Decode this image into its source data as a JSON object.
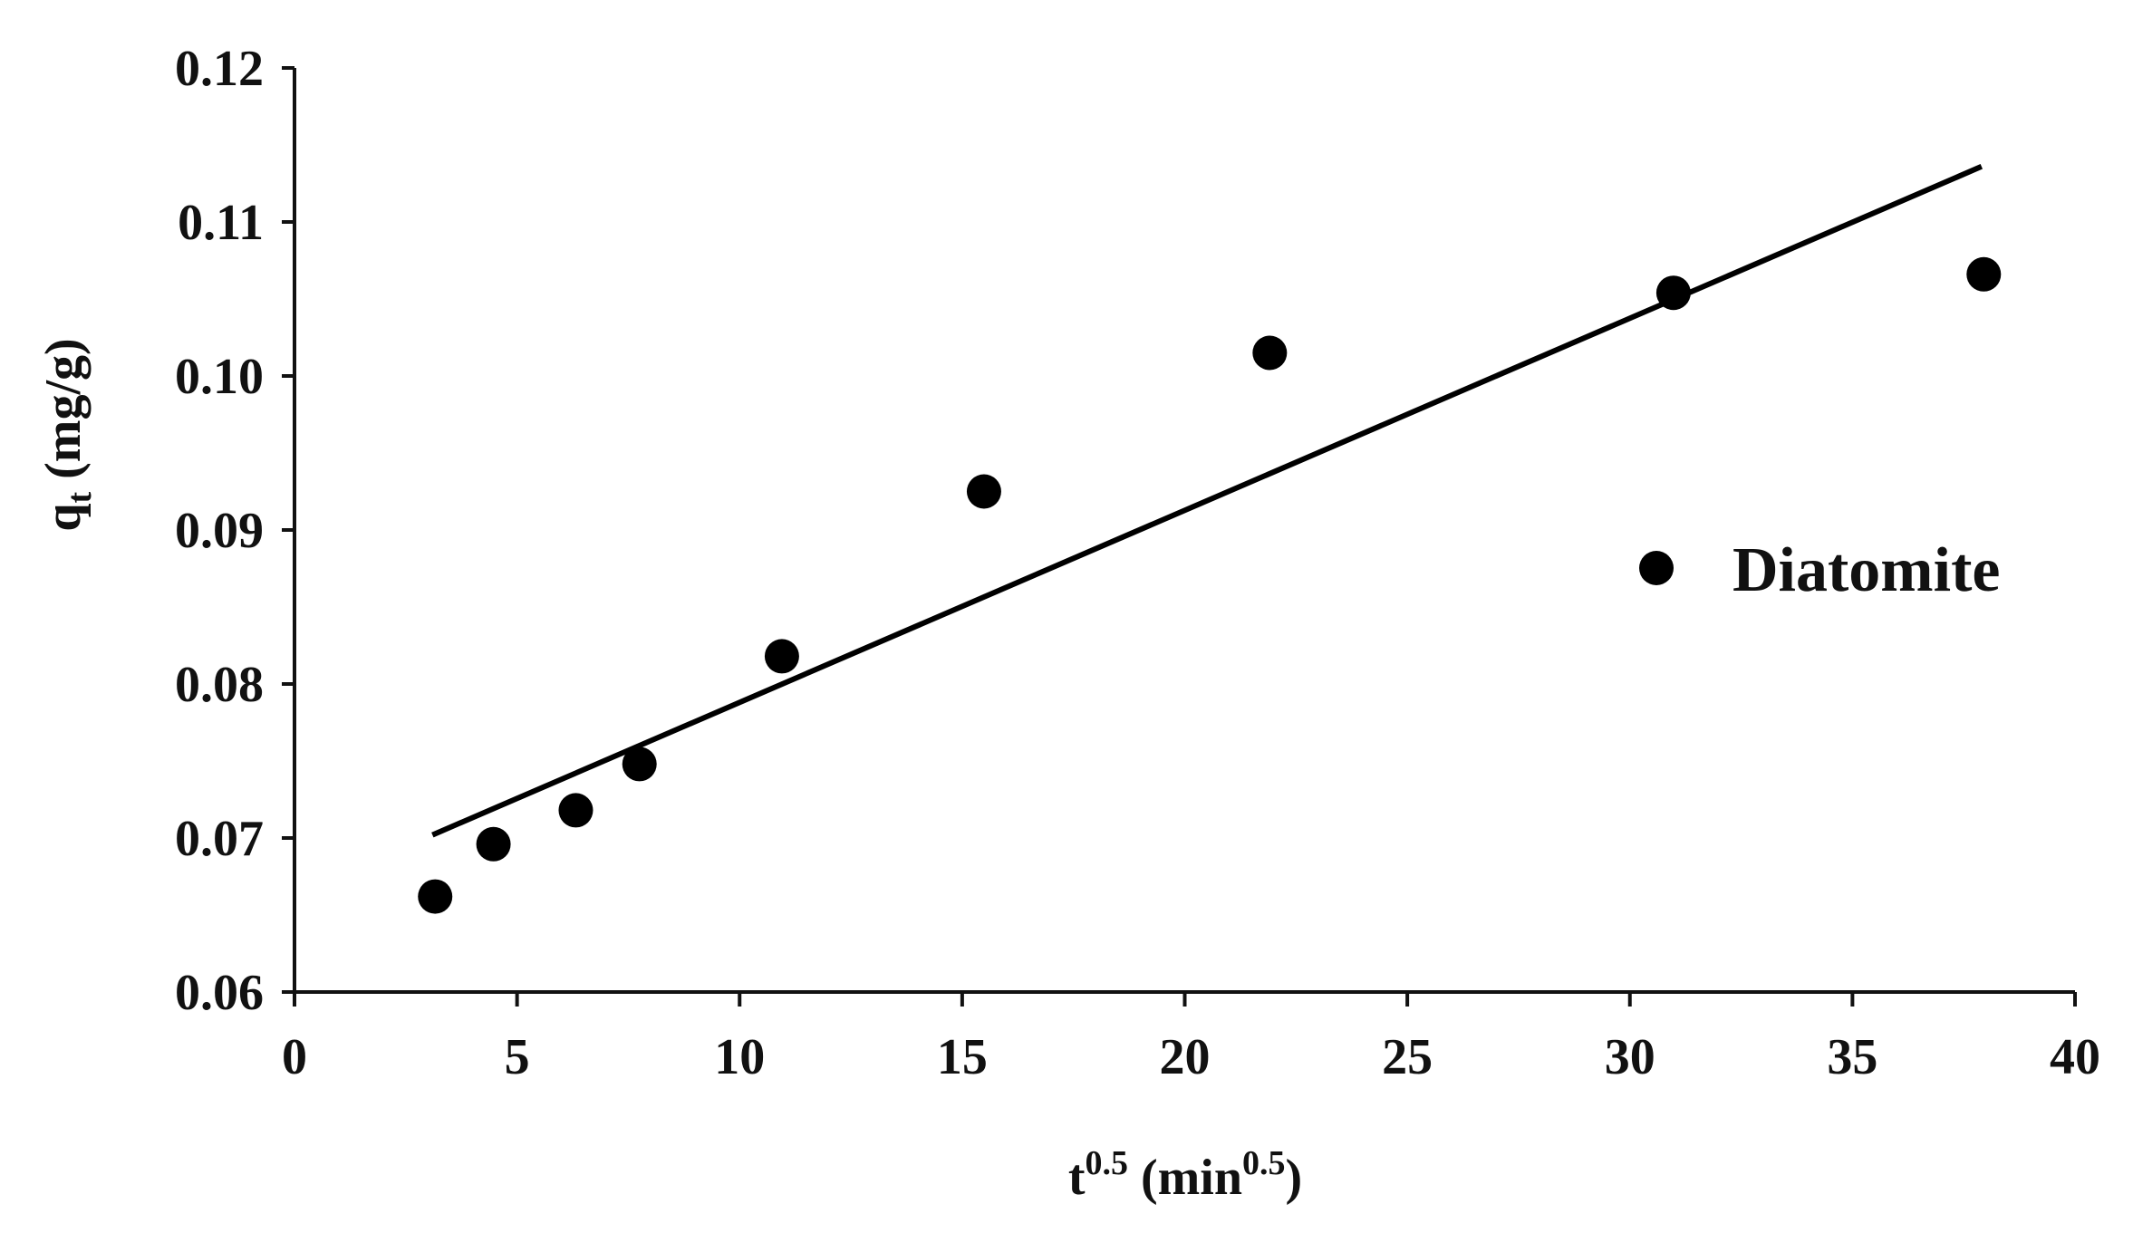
{
  "chart_data": {
    "type": "scatter",
    "xlabel": {
      "base": "t",
      "sup": "0.5",
      "unit_open": " (min",
      "unit_sup": "0.5",
      "unit_close": ")"
    },
    "ylabel": {
      "base": "q",
      "sub": "t",
      "unit": " (mg/g)"
    },
    "xlim": [
      0,
      40
    ],
    "ylim": [
      0.06,
      0.12
    ],
    "x_ticks": [
      "0",
      "5",
      "10",
      "15",
      "20",
      "25",
      "30",
      "35",
      "40"
    ],
    "y_ticks": [
      "0.06",
      "0.07",
      "0.08",
      "0.09",
      "0.10",
      "0.11",
      "0.12"
    ],
    "grid": false,
    "legend": {
      "placement": "right",
      "label": "Diatomite"
    },
    "series": [
      {
        "name": "Diatomite",
        "x": [
          3.16,
          4.47,
          6.32,
          7.75,
          10.95,
          15.49,
          21.91,
          30.98,
          37.95
        ],
        "y": [
          0.0662,
          0.0696,
          0.0718,
          0.0748,
          0.0818,
          0.0925,
          0.1015,
          0.1054,
          0.1066
        ],
        "color": "#000000"
      }
    ],
    "fit_line": {
      "x": [
        3.1,
        37.9
      ],
      "y": [
        0.0702,
        0.1136
      ],
      "color": "#000000"
    }
  }
}
